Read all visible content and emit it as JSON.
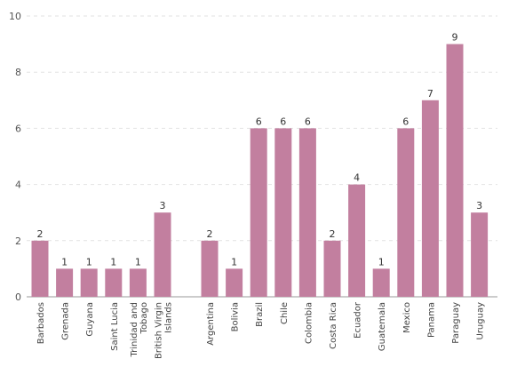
{
  "chart_data": {
    "type": "bar",
    "title": "",
    "xlabel": "",
    "ylabel": "",
    "ylim": [
      0,
      10
    ],
    "yticks": [
      0,
      2,
      4,
      6,
      8,
      10
    ],
    "grid": true,
    "bar_color": "#c27f9f",
    "categories": [
      "Barbados",
      "Grenada",
      "Guyana",
      "Saint Lucia",
      "Trinidad and Tobago",
      "British Virgin Islands",
      "Argentina",
      "Bolivia",
      "Brazil",
      "Chile",
      "Colombia",
      "Costa Rica",
      "Ecuador",
      "Guatemala",
      "Mexico",
      "Panama",
      "Paraguay",
      "Uruguay"
    ],
    "category_lines": [
      [
        "Barbados"
      ],
      [
        "Grenada"
      ],
      [
        "Guyana"
      ],
      [
        "Saint Lucia"
      ],
      [
        "Trinidad and",
        "Tobago"
      ],
      [
        "British Virgin",
        "Islands"
      ],
      [
        "Argentina"
      ],
      [
        "Bolivia"
      ],
      [
        "Brazil"
      ],
      [
        "Chile"
      ],
      [
        "Colombia"
      ],
      [
        "Costa Rica"
      ],
      [
        "Ecuador"
      ],
      [
        "Guatemala"
      ],
      [
        "Mexico"
      ],
      [
        "Panama"
      ],
      [
        "Paraguay"
      ],
      [
        "Uruguay"
      ]
    ],
    "groups": [
      {
        "start": 0,
        "count": 6
      },
      {
        "start": 6,
        "count": 12
      }
    ],
    "values": [
      2,
      1,
      1,
      1,
      1,
      3,
      2,
      1,
      6,
      6,
      6,
      2,
      4,
      1,
      6,
      7,
      9,
      3
    ]
  }
}
